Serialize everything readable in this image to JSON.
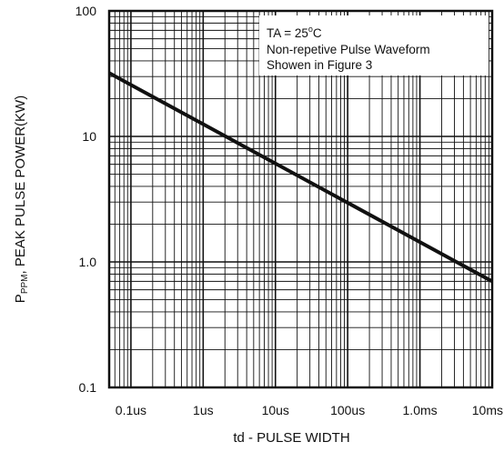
{
  "chart_data": {
    "type": "line",
    "title": "",
    "xlabel": "td - PULSE WIDTH",
    "ylabel": {
      "prefix": "P",
      "subscript": "PPM",
      "suffix": ", PEAK PULSE POWER(KW)"
    },
    "x_scale": "log",
    "y_scale": "log",
    "xlim_seconds": [
      5e-08,
      0.01
    ],
    "ylim_kw": [
      0.1,
      100
    ],
    "x_ticks": [
      {
        "value": 1e-07,
        "label": "0.1us"
      },
      {
        "value": 1e-06,
        "label": "1us"
      },
      {
        "value": 1e-05,
        "label": "10us"
      },
      {
        "value": 0.0001,
        "label": "100us"
      },
      {
        "value": 0.001,
        "label": "1.0ms"
      },
      {
        "value": 0.01,
        "label": "10ms"
      }
    ],
    "y_ticks": [
      {
        "value": 0.1,
        "label": "0.1"
      },
      {
        "value": 1,
        "label": "1.0"
      },
      {
        "value": 10,
        "label": "10"
      },
      {
        "value": 100,
        "label": "100"
      }
    ],
    "grid": true,
    "series": [
      {
        "x_seconds": [
          5e-08,
          0.01
        ],
        "y_kw": [
          32,
          0.7
        ]
      }
    ],
    "annotation": {
      "position": "top-right",
      "lines": [
        {
          "text": "TA = 25",
          "superscript": "o",
          "suffix": "C"
        },
        {
          "text": "Non-repetive Pulse Waveform"
        },
        {
          "text": "Showen in Figure 3"
        }
      ]
    }
  }
}
